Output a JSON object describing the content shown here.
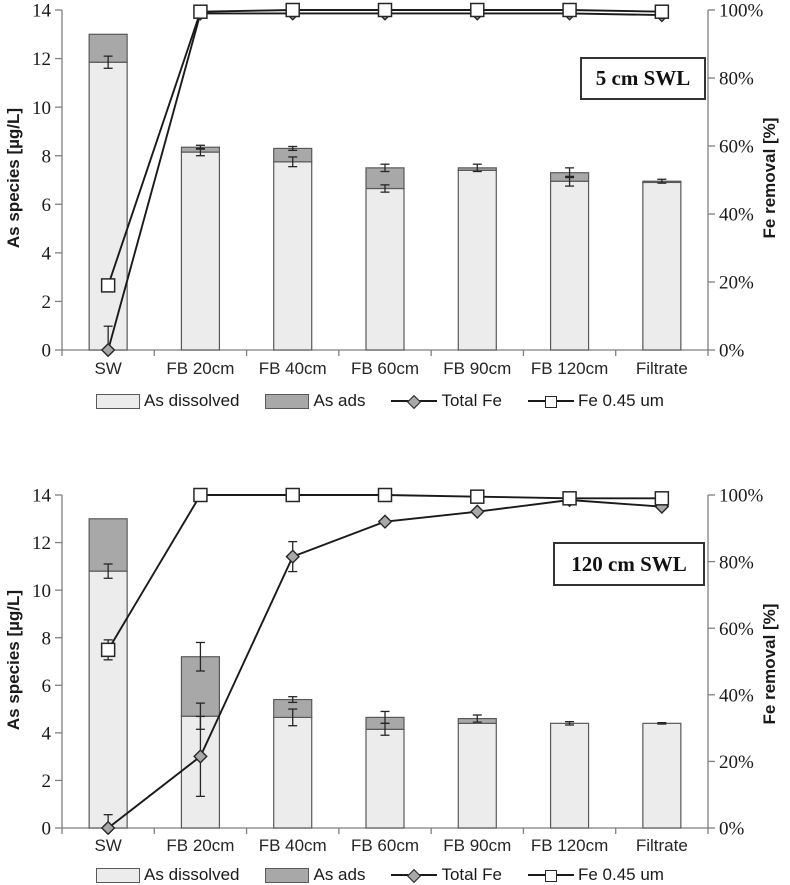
{
  "page": {
    "background": "#ffffff"
  },
  "colors": {
    "bar_dissolved_fill": "#ececec",
    "bar_ads_fill": "#a8a8a8",
    "bar_stroke": "#595959",
    "line_color": "#1a1a1a",
    "axis_color": "#7f7f7f",
    "diamond_fill": "#a8a8a8",
    "square_fill": "#ffffff",
    "marker_stroke": "#262626"
  },
  "chart_data": [
    {
      "type": "bar+line",
      "title": "5 cm SWL",
      "categories": [
        "SW",
        "FB 20cm",
        "FB 40cm",
        "FB 60cm",
        "FB 90cm",
        "FB 120cm",
        "Filtrate"
      ],
      "bar_series": [
        {
          "name": "As dissolved",
          "values": [
            11.85,
            8.15,
            7.75,
            6.65,
            7.4,
            6.95,
            6.9
          ],
          "err": [
            0.25,
            0.15,
            0.2,
            0.15,
            0,
            0.2,
            0
          ]
        },
        {
          "name": "As ads",
          "segment_values": [
            1.15,
            0.2,
            0.55,
            0.85,
            0.1,
            0.35,
            0.05
          ],
          "stack_top_values": [
            13.0,
            8.35,
            8.3,
            7.5,
            7.5,
            7.3,
            6.95
          ],
          "err": [
            0,
            0.08,
            0.08,
            0.15,
            0.15,
            0.2,
            0.08
          ]
        }
      ],
      "line_series": [
        {
          "name": "Total Fe",
          "axis": "right",
          "marker": "diamond",
          "values_pct": [
            0,
            99,
            99,
            99,
            99,
            99,
            98.5
          ],
          "err_pct": [
            7,
            0,
            0,
            0,
            0,
            0,
            0
          ]
        },
        {
          "name": "Fe 0.45 um",
          "axis": "right",
          "marker": "square",
          "values_pct": [
            19,
            99.5,
            100,
            100,
            100,
            100,
            99.5
          ],
          "err_pct": [
            0,
            0,
            0,
            0,
            0,
            0,
            0
          ]
        }
      ],
      "axes": {
        "left": {
          "label": "As species [µg/L]",
          "min": 0,
          "max": 14,
          "ticks": [
            "0",
            "2",
            "4",
            "6",
            "8",
            "10",
            "12",
            "14"
          ]
        },
        "right": {
          "label": "Fe removal [%]",
          "min": 0,
          "max": 100,
          "ticks": [
            "0%",
            "20%",
            "40%",
            "60%",
            "80%",
            "100%"
          ]
        }
      },
      "legend": [
        "As dissolved",
        "As ads",
        "Total Fe",
        "Fe 0.45 um"
      ],
      "grid": false,
      "legend_position": "bottom"
    },
    {
      "type": "bar+line",
      "title": "120 cm SWL",
      "categories": [
        "SW",
        "FB 20cm",
        "FB 40cm",
        "FB 60cm",
        "FB 90cm",
        "FB 120cm",
        "Filtrate"
      ],
      "bar_series": [
        {
          "name": "As dissolved",
          "values": [
            10.8,
            4.7,
            4.65,
            4.15,
            4.4,
            4.4,
            4.4
          ],
          "err": [
            0.3,
            0.55,
            0.35,
            0.25,
            0,
            0.07,
            0.03
          ]
        },
        {
          "name": "As ads",
          "segment_values": [
            2.2,
            2.5,
            0.75,
            0.5,
            0.2,
            0,
            0
          ],
          "stack_top_values": [
            13.0,
            7.2,
            5.4,
            4.65,
            4.6,
            4.4,
            4.4
          ],
          "err": [
            0,
            0.6,
            0.12,
            0.25,
            0.15,
            0,
            0
          ]
        }
      ],
      "line_series": [
        {
          "name": "Total Fe",
          "axis": "right",
          "marker": "diamond",
          "values_pct": [
            0,
            21.5,
            81.5,
            92,
            95,
            98.5,
            96.5
          ],
          "err_pct": [
            4,
            12,
            4.5,
            0,
            0,
            0,
            0
          ]
        },
        {
          "name": "Fe 0.45 um",
          "axis": "right",
          "marker": "square",
          "values_pct": [
            53.5,
            100,
            100,
            100,
            99.5,
            99,
            99
          ],
          "err_pct": [
            3,
            0,
            0,
            0,
            0,
            0,
            0
          ]
        }
      ],
      "axes": {
        "left": {
          "label": "As species [µg/L]",
          "min": 0,
          "max": 14,
          "ticks": [
            "0",
            "2",
            "4",
            "6",
            "8",
            "10",
            "12",
            "14"
          ]
        },
        "right": {
          "label": "Fe removal [%]",
          "min": 0,
          "max": 100,
          "ticks": [
            "0%",
            "20%",
            "40%",
            "60%",
            "80%",
            "100%"
          ]
        }
      },
      "legend": [
        "As dissolved",
        "As ads",
        "Total Fe",
        "Fe 0.45 um"
      ],
      "grid": false,
      "legend_position": "bottom"
    }
  ]
}
